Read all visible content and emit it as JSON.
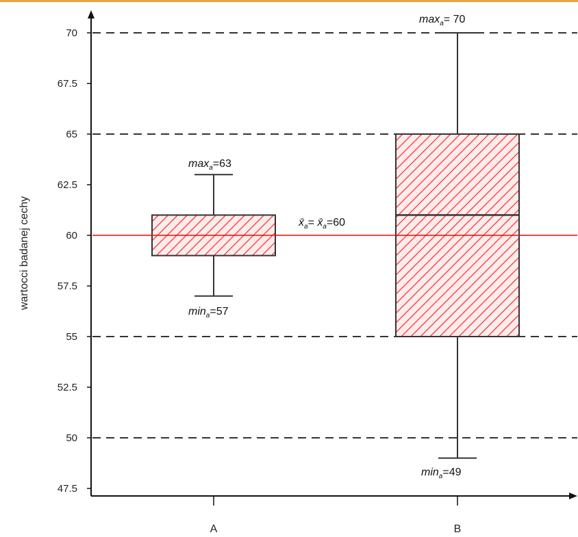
{
  "colors": {
    "top_rule": "#e8a33c",
    "axis": "#111111",
    "gridline": "#333333",
    "box_stroke": "#333333",
    "hatch": "#ff3030",
    "box_fill": "#ffecec",
    "mean_line": "#ff0000",
    "whisker": "#333333"
  },
  "chart_data": {
    "type": "box",
    "ylabel": "wartocci badanej cechy",
    "ylim": [
      47.5,
      71
    ],
    "yticks": [
      47.5,
      50,
      52.5,
      55,
      57.5,
      60,
      62.5,
      65,
      67.5,
      70
    ],
    "ytick_labels": [
      "47.5",
      "50",
      "52.5",
      "55",
      "57.5",
      "60",
      "62.5",
      "65",
      "67.5",
      "70"
    ],
    "dashed_gridlines": [
      50,
      55,
      65,
      70
    ],
    "reference_line": 60,
    "categories": [
      "A",
      "B"
    ],
    "boxes": [
      {
        "category": "A",
        "min": 57,
        "q1": 59,
        "median": 61,
        "q3": 61,
        "max": 63
      },
      {
        "category": "B",
        "min": 49,
        "q1": 55,
        "median": 61,
        "q3": 65,
        "max": 70
      }
    ],
    "annotations": [
      {
        "id": "max-a",
        "symbol": "max",
        "sub": "a",
        "value_text": "=63"
      },
      {
        "id": "min-a",
        "symbol": "min",
        "sub": "a",
        "value_text": "=57"
      },
      {
        "id": "max-b",
        "symbol": "max",
        "sub": "a",
        "value_text": "= 70"
      },
      {
        "id": "min-b",
        "symbol": "min",
        "sub": "a",
        "value_text": "=49"
      },
      {
        "id": "mean",
        "symbol": "x̄",
        "sub": "a",
        "mid_text": "= ",
        "symbol2": "x̄",
        "sub2": "a",
        "value_text": "=60"
      }
    ]
  }
}
